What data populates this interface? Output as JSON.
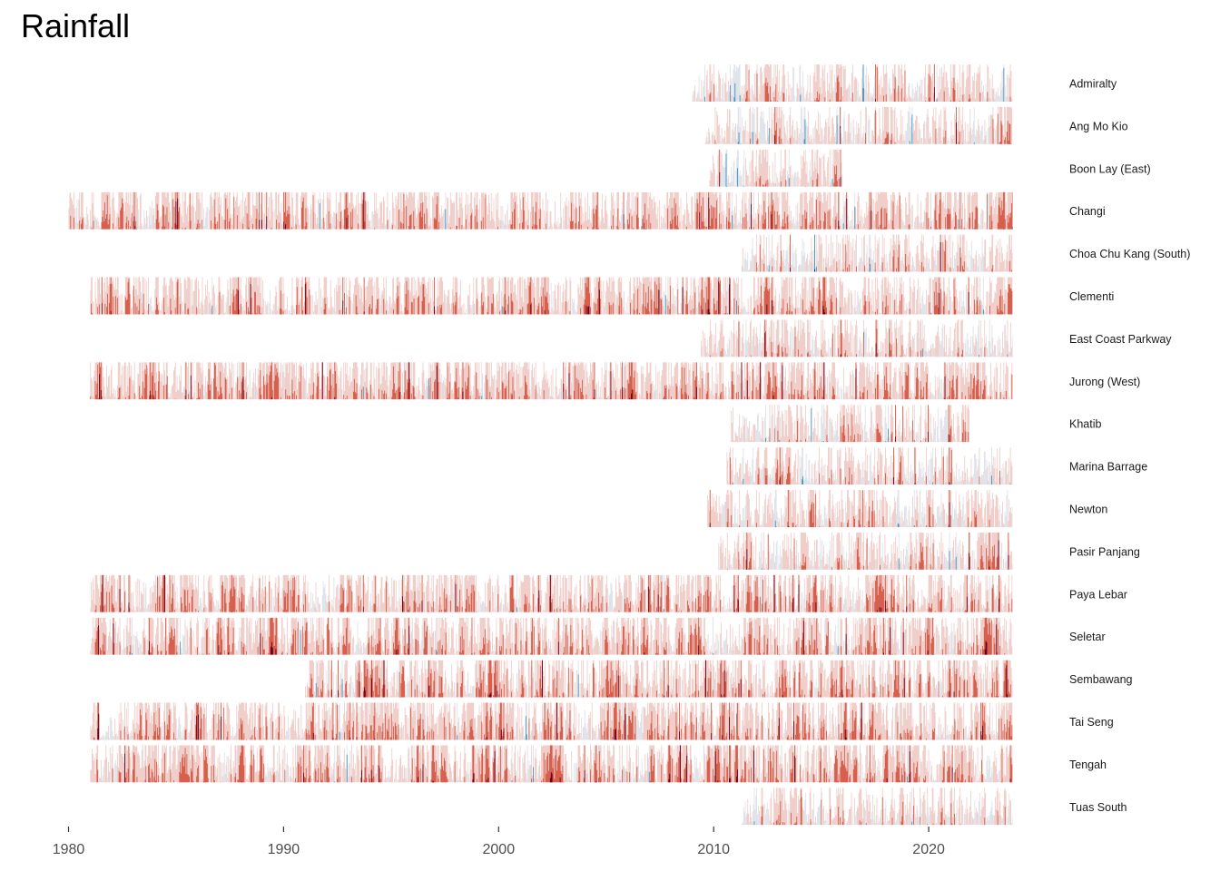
{
  "chart_data": {
    "type": "horizon",
    "title": "Rainfall",
    "xlabel": "",
    "ylabel": "",
    "x_range": [
      1980,
      2024
    ],
    "x_ticks": [
      1980,
      1990,
      2000,
      2010,
      2020
    ],
    "x_tick_labels": [
      "1980",
      "1990",
      "2000",
      "2010",
      "2020"
    ],
    "grid": false,
    "legend": "none",
    "series": [
      {
        "name": "Admiralty",
        "start": 2009.0,
        "end": 2023.9
      },
      {
        "name": "Ang Mo Kio",
        "start": 2009.6,
        "end": 2023.9
      },
      {
        "name": "Boon Lay (East)",
        "start": 2009.8,
        "end": 2016.0
      },
      {
        "name": "Changi",
        "start": 1980.0,
        "end": 2023.9
      },
      {
        "name": "Choa Chu Kang (South)",
        "start": 2011.3,
        "end": 2023.9
      },
      {
        "name": "Clementi",
        "start": 1981.0,
        "end": 2023.9
      },
      {
        "name": "East Coast Parkway",
        "start": 2009.4,
        "end": 2023.9
      },
      {
        "name": "Jurong (West)",
        "start": 1981.0,
        "end": 2023.9
      },
      {
        "name": "Khatib",
        "start": 2010.8,
        "end": 2021.9
      },
      {
        "name": "Marina Barrage",
        "start": 2010.6,
        "end": 2023.9
      },
      {
        "name": "Newton",
        "start": 2009.7,
        "end": 2023.9
      },
      {
        "name": "Pasir Panjang",
        "start": 2010.2,
        "end": 2023.9
      },
      {
        "name": "Paya Lebar",
        "start": 1981.0,
        "end": 2023.9
      },
      {
        "name": "Seletar",
        "start": 1981.0,
        "end": 2023.9
      },
      {
        "name": "Sembawang",
        "start": 1991.0,
        "end": 2023.9
      },
      {
        "name": "Tai Seng",
        "start": 1981.0,
        "end": 2023.9
      },
      {
        "name": "Tengah",
        "start": 1981.0,
        "end": 2023.9
      },
      {
        "name": "Tuas South",
        "start": 2011.3,
        "end": 2023.9
      }
    ],
    "band_colors": {
      "pos1": "#f0cfcb",
      "pos2": "#d6604d",
      "pos3": "#67001f",
      "neg1": "#dfe3ea",
      "neg2": "#4393c3",
      "neg3": "#053061"
    }
  }
}
